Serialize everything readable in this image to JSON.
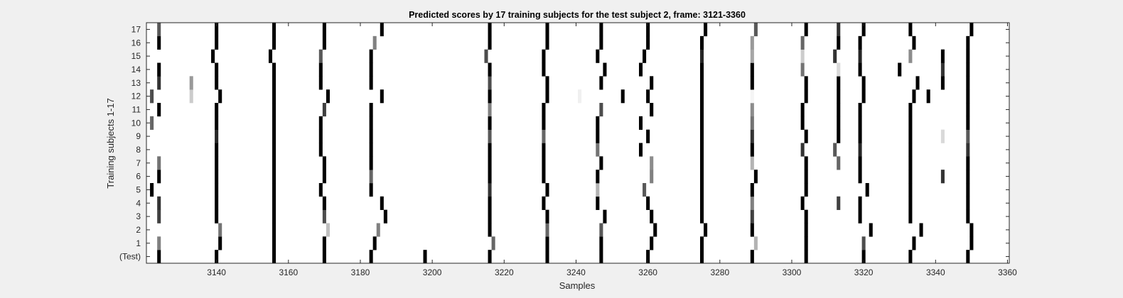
{
  "chart_data": {
    "type": "heatmap",
    "title": "Predicted scores by 17 training subjects for the test subject 2, frame: 3121-3360",
    "xlabel": "Samples",
    "ylabel": "Training subjects 1-17",
    "xlim": [
      3121,
      3360
    ],
    "x_ticks": [
      3140,
      3160,
      3180,
      3200,
      3220,
      3240,
      3260,
      3280,
      3300,
      3320,
      3340,
      3360
    ],
    "y_tick_labels": [
      "(Test)",
      "1",
      "2",
      "3",
      "4",
      "5",
      "6",
      "7",
      "8",
      "9",
      "10",
      "11",
      "12",
      "13",
      "14",
      "15",
      "16",
      "17"
    ],
    "colormap": "grayscale (0 = white, 1 = black)",
    "background_color": "#f0f0f0",
    "rows": [
      {
        "label": "(Test)",
        "marks": [
          [
            3124,
            1
          ],
          [
            3140,
            1
          ],
          [
            3156,
            1
          ],
          [
            3170,
            1
          ],
          [
            3183,
            1
          ],
          [
            3198,
            1
          ],
          [
            3216,
            1
          ],
          [
            3232,
            1
          ],
          [
            3247,
            1
          ],
          [
            3260,
            1
          ],
          [
            3275,
            1
          ],
          [
            3289,
            1
          ],
          [
            3304,
            1
          ],
          [
            3320,
            1
          ],
          [
            3333,
            1
          ],
          [
            3349,
            1
          ]
        ]
      },
      {
        "label": "1",
        "marks": [
          [
            3124,
            0.5
          ],
          [
            3141,
            1
          ],
          [
            3156,
            1
          ],
          [
            3170,
            1
          ],
          [
            3184,
            1
          ],
          [
            3217,
            0.6
          ],
          [
            3232,
            1
          ],
          [
            3247,
            1
          ],
          [
            3261,
            1
          ],
          [
            3275,
            1
          ],
          [
            3290,
            0.3
          ],
          [
            3304,
            1
          ],
          [
            3320,
            0.7
          ],
          [
            3334,
            1
          ],
          [
            3350,
            1
          ]
        ]
      },
      {
        "label": "2",
        "marks": [
          [
            3141,
            0.55
          ],
          [
            3156,
            1
          ],
          [
            3171,
            0.25
          ],
          [
            3185,
            0.5
          ],
          [
            3216,
            1
          ],
          [
            3232,
            0.6
          ],
          [
            3247,
            0.65
          ],
          [
            3262,
            1
          ],
          [
            3276,
            1
          ],
          [
            3289,
            1
          ],
          [
            3304,
            1
          ],
          [
            3322,
            1
          ],
          [
            3336,
            1
          ],
          [
            3350,
            1
          ]
        ]
      },
      {
        "label": "3",
        "marks": [
          [
            3124,
            0.75
          ],
          [
            3140,
            1
          ],
          [
            3156,
            1
          ],
          [
            3170,
            0.7
          ],
          [
            3187,
            1
          ],
          [
            3216,
            1
          ],
          [
            3232,
            1
          ],
          [
            3248,
            1
          ],
          [
            3261,
            1
          ],
          [
            3275,
            1
          ],
          [
            3289,
            0.75
          ],
          [
            3304,
            1
          ],
          [
            3319,
            1
          ],
          [
            3333,
            1
          ],
          [
            3349,
            1
          ]
        ]
      },
      {
        "label": "4",
        "marks": [
          [
            3124,
            0.8
          ],
          [
            3140,
            1
          ],
          [
            3156,
            1
          ],
          [
            3170,
            1
          ],
          [
            3186,
            1
          ],
          [
            3216,
            1
          ],
          [
            3231,
            1
          ],
          [
            3246,
            1
          ],
          [
            3260,
            1
          ],
          [
            3275,
            1
          ],
          [
            3289,
            0.5
          ],
          [
            3303,
            1
          ],
          [
            3313,
            0.75
          ],
          [
            3319,
            1
          ],
          [
            3333,
            1
          ],
          [
            3349,
            1
          ]
        ]
      },
      {
        "label": "5",
        "marks": [
          [
            3122,
            1
          ],
          [
            3140,
            1
          ],
          [
            3156,
            1
          ],
          [
            3169,
            1
          ],
          [
            3183,
            1
          ],
          [
            3216,
            0.8
          ],
          [
            3232,
            1
          ],
          [
            3246,
            0.3
          ],
          [
            3259,
            0.65
          ],
          [
            3275,
            1
          ],
          [
            3289,
            1
          ],
          [
            3304,
            1
          ],
          [
            3321,
            1
          ],
          [
            3333,
            1
          ],
          [
            3349,
            1
          ]
        ]
      },
      {
        "label": "6",
        "marks": [
          [
            3124,
            1
          ],
          [
            3140,
            1
          ],
          [
            3156,
            1
          ],
          [
            3170,
            1
          ],
          [
            3183,
            0.6
          ],
          [
            3216,
            1
          ],
          [
            3231,
            1
          ],
          [
            3246,
            1
          ],
          [
            3261,
            0.5
          ],
          [
            3275,
            1
          ],
          [
            3290,
            1
          ],
          [
            3304,
            1
          ],
          [
            3319,
            1
          ],
          [
            3333,
            1
          ],
          [
            3342,
            0.8
          ],
          [
            3349,
            1
          ]
        ]
      },
      {
        "label": "7",
        "marks": [
          [
            3124,
            0.55
          ],
          [
            3140,
            1
          ],
          [
            3156,
            1
          ],
          [
            3170,
            1
          ],
          [
            3183,
            1
          ],
          [
            3216,
            1
          ],
          [
            3231,
            1
          ],
          [
            3247,
            1
          ],
          [
            3261,
            0.45
          ],
          [
            3275,
            1
          ],
          [
            3289,
            0.3
          ],
          [
            3304,
            1
          ],
          [
            3313,
            0.6
          ],
          [
            3319,
            1
          ],
          [
            3333,
            1
          ],
          [
            3349,
            1
          ]
        ]
      },
      {
        "label": "8",
        "marks": [
          [
            3140,
            1
          ],
          [
            3156,
            1
          ],
          [
            3169,
            1
          ],
          [
            3183,
            1
          ],
          [
            3216,
            1
          ],
          [
            3231,
            1
          ],
          [
            3246,
            0.55
          ],
          [
            3258,
            1
          ],
          [
            3275,
            1
          ],
          [
            3289,
            1
          ],
          [
            3303,
            0.8
          ],
          [
            3312,
            0.65
          ],
          [
            3319,
            0.85
          ],
          [
            3333,
            1
          ],
          [
            3349,
            0.8
          ]
        ]
      },
      {
        "label": "9",
        "marks": [
          [
            3140,
            0.85
          ],
          [
            3156,
            1
          ],
          [
            3169,
            1
          ],
          [
            3183,
            1
          ],
          [
            3216,
            0.65
          ],
          [
            3231,
            0.6
          ],
          [
            3246,
            1
          ],
          [
            3260,
            1
          ],
          [
            3275,
            1
          ],
          [
            3289,
            0.8
          ],
          [
            3304,
            1
          ],
          [
            3313,
            1
          ],
          [
            3319,
            1
          ],
          [
            3333,
            1
          ],
          [
            3342,
            0.15
          ],
          [
            3349,
            0.65
          ]
        ]
      },
      {
        "label": "10",
        "marks": [
          [
            3122,
            0.6
          ],
          [
            3140,
            1
          ],
          [
            3156,
            1
          ],
          [
            3169,
            1
          ],
          [
            3183,
            1
          ],
          [
            3216,
            1
          ],
          [
            3231,
            1
          ],
          [
            3246,
            1
          ],
          [
            3258,
            1
          ],
          [
            3275,
            1
          ],
          [
            3289,
            0.55
          ],
          [
            3303,
            1
          ],
          [
            3313,
            1
          ],
          [
            3319,
            1
          ],
          [
            3333,
            1
          ],
          [
            3349,
            1
          ]
        ]
      },
      {
        "label": "11",
        "marks": [
          [
            3124,
            1
          ],
          [
            3140,
            1
          ],
          [
            3156,
            1
          ],
          [
            3170,
            0.75
          ],
          [
            3183,
            1
          ],
          [
            3216,
            0.5
          ],
          [
            3231,
            1
          ],
          [
            3247,
            0.7
          ],
          [
            3261,
            1
          ],
          [
            3275,
            1
          ],
          [
            3289,
            0.45
          ],
          [
            3303,
            1
          ],
          [
            3313,
            1
          ],
          [
            3319,
            1
          ],
          [
            3333,
            1
          ],
          [
            3349,
            1
          ]
        ]
      },
      {
        "label": "12",
        "marks": [
          [
            3122,
            0.7
          ],
          [
            3133,
            0.2
          ],
          [
            3141,
            1
          ],
          [
            3156,
            1
          ],
          [
            3171,
            1
          ],
          [
            3186,
            1
          ],
          [
            3216,
            1
          ],
          [
            3232,
            1
          ],
          [
            3241,
            0.06
          ],
          [
            3253,
            1
          ],
          [
            3260,
            1
          ],
          [
            3275,
            1
          ],
          [
            3289,
            0.04
          ],
          [
            3304,
            1
          ],
          [
            3313,
            1
          ],
          [
            3320,
            1
          ],
          [
            3334,
            1
          ],
          [
            3338,
            1
          ],
          [
            3349,
            1
          ]
        ]
      },
      {
        "label": "13",
        "marks": [
          [
            3124,
            0.8
          ],
          [
            3133,
            0.4
          ],
          [
            3140,
            1
          ],
          [
            3156,
            1
          ],
          [
            3169,
            1
          ],
          [
            3183,
            1
          ],
          [
            3216,
            0.7
          ],
          [
            3232,
            1
          ],
          [
            3247,
            1
          ],
          [
            3261,
            1
          ],
          [
            3275,
            1
          ],
          [
            3289,
            1
          ],
          [
            3304,
            1
          ],
          [
            3313,
            1
          ],
          [
            3320,
            1
          ],
          [
            3335,
            1
          ],
          [
            3342,
            1
          ],
          [
            3349,
            1
          ]
        ]
      },
      {
        "label": "14",
        "marks": [
          [
            3124,
            1
          ],
          [
            3140,
            1
          ],
          [
            3156,
            1
          ],
          [
            3169,
            1
          ],
          [
            3183,
            1
          ],
          [
            3216,
            1
          ],
          [
            3231,
            1
          ],
          [
            3248,
            1
          ],
          [
            3258,
            1
          ],
          [
            3275,
            1
          ],
          [
            3289,
            1
          ],
          [
            3303,
            0.55
          ],
          [
            3313,
            0.15
          ],
          [
            3319,
            1
          ],
          [
            3330,
            1
          ],
          [
            3342,
            0.8
          ],
          [
            3349,
            1
          ]
        ]
      },
      {
        "label": "15",
        "marks": [
          [
            3139,
            1
          ],
          [
            3155,
            1
          ],
          [
            3169,
            0.65
          ],
          [
            3183,
            1
          ],
          [
            3215,
            0.7
          ],
          [
            3231,
            1
          ],
          [
            3246,
            1
          ],
          [
            3259,
            1
          ],
          [
            3275,
            0.85
          ],
          [
            3289,
            0.35
          ],
          [
            3303,
            0.2
          ],
          [
            3312,
            0.8
          ],
          [
            3319,
            0.85
          ],
          [
            3333,
            0.45
          ],
          [
            3342,
            1
          ],
          [
            3349,
            1
          ]
        ]
      },
      {
        "label": "16",
        "marks": [
          [
            3124,
            1
          ],
          [
            3140,
            1
          ],
          [
            3156,
            1
          ],
          [
            3170,
            1
          ],
          [
            3184,
            0.5
          ],
          [
            3216,
            1
          ],
          [
            3232,
            1
          ],
          [
            3247,
            1
          ],
          [
            3260,
            1
          ],
          [
            3275,
            1
          ],
          [
            3289,
            0.4
          ],
          [
            3303,
            0.6
          ],
          [
            3313,
            1
          ],
          [
            3319,
            1
          ],
          [
            3334,
            1
          ],
          [
            3349,
            1
          ]
        ]
      },
      {
        "label": "17",
        "marks": [
          [
            3124,
            0.65
          ],
          [
            3140,
            1
          ],
          [
            3156,
            1
          ],
          [
            3170,
            1
          ],
          [
            3186,
            1
          ],
          [
            3216,
            1
          ],
          [
            3232,
            1
          ],
          [
            3247,
            1
          ],
          [
            3260,
            1
          ],
          [
            3276,
            1
          ],
          [
            3290,
            0.65
          ],
          [
            3304,
            1
          ],
          [
            3313,
            0.8
          ],
          [
            3320,
            1
          ],
          [
            3333,
            1
          ],
          [
            3350,
            1
          ]
        ]
      }
    ]
  }
}
